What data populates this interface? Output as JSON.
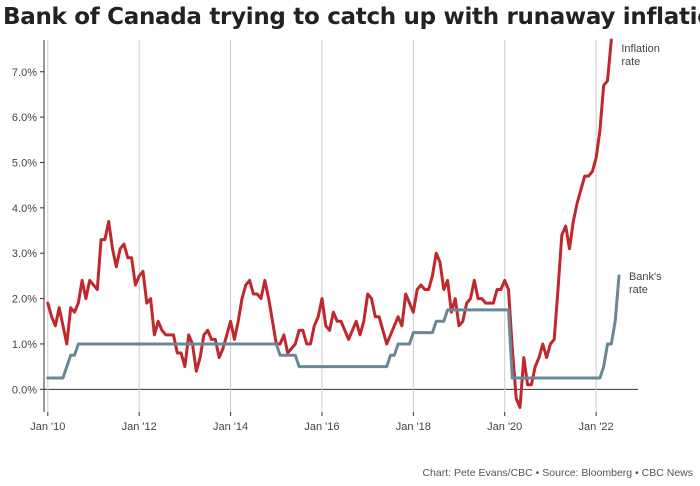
{
  "chart_data": {
    "type": "line",
    "title": "Bank of Canada trying to catch up with runaway inflation",
    "credit": "Chart: Pete Evans/CBC • Source: Bloomberg • CBC News",
    "xlabel": "",
    "ylabel": "",
    "x_range": [
      "2009-12",
      "2022-12"
    ],
    "ylim": [
      -0.5,
      7.7
    ],
    "y_ticks": [
      "0.0%",
      "1.0%",
      "2.0%",
      "3.0%",
      "4.0%",
      "5.0%",
      "6.0%",
      "7.0%"
    ],
    "x_ticks": [
      "Jan '10",
      "Jan '12",
      "Jan '14",
      "Jan '16",
      "Jan '18",
      "Jan '20",
      "Jan '22"
    ],
    "grid": "vertical",
    "series": [
      {
        "name": "Inflation rate",
        "color": "#c0282d",
        "points": [
          [
            "2010-01",
            1.9
          ],
          [
            "2010-02",
            1.6
          ],
          [
            "2010-03",
            1.4
          ],
          [
            "2010-04",
            1.8
          ],
          [
            "2010-05",
            1.4
          ],
          [
            "2010-06",
            1.0
          ],
          [
            "2010-07",
            1.8
          ],
          [
            "2010-08",
            1.7
          ],
          [
            "2010-09",
            1.9
          ],
          [
            "2010-10",
            2.4
          ],
          [
            "2010-11",
            2.0
          ],
          [
            "2010-12",
            2.4
          ],
          [
            "2011-01",
            2.3
          ],
          [
            "2011-02",
            2.2
          ],
          [
            "2011-03",
            3.3
          ],
          [
            "2011-04",
            3.3
          ],
          [
            "2011-05",
            3.7
          ],
          [
            "2011-06",
            3.1
          ],
          [
            "2011-07",
            2.7
          ],
          [
            "2011-08",
            3.1
          ],
          [
            "2011-09",
            3.2
          ],
          [
            "2011-10",
            2.9
          ],
          [
            "2011-11",
            2.9
          ],
          [
            "2011-12",
            2.3
          ],
          [
            "2012-01",
            2.5
          ],
          [
            "2012-02",
            2.6
          ],
          [
            "2012-03",
            1.9
          ],
          [
            "2012-04",
            2.0
          ],
          [
            "2012-05",
            1.2
          ],
          [
            "2012-06",
            1.5
          ],
          [
            "2012-07",
            1.3
          ],
          [
            "2012-08",
            1.2
          ],
          [
            "2012-09",
            1.2
          ],
          [
            "2012-10",
            1.2
          ],
          [
            "2012-11",
            0.8
          ],
          [
            "2012-12",
            0.8
          ],
          [
            "2013-01",
            0.5
          ],
          [
            "2013-02",
            1.2
          ],
          [
            "2013-03",
            1.0
          ],
          [
            "2013-04",
            0.4
          ],
          [
            "2013-05",
            0.7
          ],
          [
            "2013-06",
            1.2
          ],
          [
            "2013-07",
            1.3
          ],
          [
            "2013-08",
            1.1
          ],
          [
            "2013-09",
            1.1
          ],
          [
            "2013-10",
            0.7
          ],
          [
            "2013-11",
            0.9
          ],
          [
            "2013-12",
            1.2
          ],
          [
            "2014-01",
            1.5
          ],
          [
            "2014-02",
            1.1
          ],
          [
            "2014-03",
            1.5
          ],
          [
            "2014-04",
            2.0
          ],
          [
            "2014-05",
            2.3
          ],
          [
            "2014-06",
            2.4
          ],
          [
            "2014-07",
            2.1
          ],
          [
            "2014-08",
            2.1
          ],
          [
            "2014-09",
            2.0
          ],
          [
            "2014-10",
            2.4
          ],
          [
            "2014-11",
            2.0
          ],
          [
            "2014-12",
            1.5
          ],
          [
            "2015-01",
            1.0
          ],
          [
            "2015-02",
            1.0
          ],
          [
            "2015-03",
            1.2
          ],
          [
            "2015-04",
            0.8
          ],
          [
            "2015-05",
            0.9
          ],
          [
            "2015-06",
            1.0
          ],
          [
            "2015-07",
            1.3
          ],
          [
            "2015-08",
            1.3
          ],
          [
            "2015-09",
            1.0
          ],
          [
            "2015-10",
            1.0
          ],
          [
            "2015-11",
            1.4
          ],
          [
            "2015-12",
            1.6
          ],
          [
            "2016-01",
            2.0
          ],
          [
            "2016-02",
            1.4
          ],
          [
            "2016-03",
            1.3
          ],
          [
            "2016-04",
            1.7
          ],
          [
            "2016-05",
            1.5
          ],
          [
            "2016-06",
            1.5
          ],
          [
            "2016-07",
            1.3
          ],
          [
            "2016-08",
            1.1
          ],
          [
            "2016-09",
            1.3
          ],
          [
            "2016-10",
            1.5
          ],
          [
            "2016-11",
            1.2
          ],
          [
            "2016-12",
            1.5
          ],
          [
            "2017-01",
            2.1
          ],
          [
            "2017-02",
            2.0
          ],
          [
            "2017-03",
            1.6
          ],
          [
            "2017-04",
            1.6
          ],
          [
            "2017-05",
            1.3
          ],
          [
            "2017-06",
            1.0
          ],
          [
            "2017-07",
            1.2
          ],
          [
            "2017-08",
            1.4
          ],
          [
            "2017-09",
            1.6
          ],
          [
            "2017-10",
            1.4
          ],
          [
            "2017-11",
            2.1
          ],
          [
            "2017-12",
            1.9
          ],
          [
            "2018-01",
            1.7
          ],
          [
            "2018-02",
            2.2
          ],
          [
            "2018-03",
            2.3
          ],
          [
            "2018-04",
            2.2
          ],
          [
            "2018-05",
            2.2
          ],
          [
            "2018-06",
            2.5
          ],
          [
            "2018-07",
            3.0
          ],
          [
            "2018-08",
            2.8
          ],
          [
            "2018-09",
            2.2
          ],
          [
            "2018-10",
            2.4
          ],
          [
            "2018-11",
            1.7
          ],
          [
            "2018-12",
            2.0
          ],
          [
            "2019-01",
            1.4
          ],
          [
            "2019-02",
            1.5
          ],
          [
            "2019-03",
            1.9
          ],
          [
            "2019-04",
            2.0
          ],
          [
            "2019-05",
            2.4
          ],
          [
            "2019-06",
            2.0
          ],
          [
            "2019-07",
            2.0
          ],
          [
            "2019-08",
            1.9
          ],
          [
            "2019-09",
            1.9
          ],
          [
            "2019-10",
            1.9
          ],
          [
            "2019-11",
            2.2
          ],
          [
            "2019-12",
            2.2
          ],
          [
            "2020-01",
            2.4
          ],
          [
            "2020-02",
            2.2
          ],
          [
            "2020-03",
            0.9
          ],
          [
            "2020-04",
            -0.2
          ],
          [
            "2020-05",
            -0.4
          ],
          [
            "2020-06",
            0.7
          ],
          [
            "2020-07",
            0.1
          ],
          [
            "2020-08",
            0.1
          ],
          [
            "2020-09",
            0.5
          ],
          [
            "2020-10",
            0.7
          ],
          [
            "2020-11",
            1.0
          ],
          [
            "2020-12",
            0.7
          ],
          [
            "2021-01",
            1.0
          ],
          [
            "2021-02",
            1.1
          ],
          [
            "2021-03",
            2.2
          ],
          [
            "2021-04",
            3.4
          ],
          [
            "2021-05",
            3.6
          ],
          [
            "2021-06",
            3.1
          ],
          [
            "2021-07",
            3.7
          ],
          [
            "2021-08",
            4.1
          ],
          [
            "2021-09",
            4.4
          ],
          [
            "2021-10",
            4.7
          ],
          [
            "2021-11",
            4.7
          ],
          [
            "2021-12",
            4.8
          ],
          [
            "2022-01",
            5.1
          ],
          [
            "2022-02",
            5.7
          ],
          [
            "2022-03",
            6.7
          ],
          [
            "2022-04",
            6.8
          ],
          [
            "2022-05",
            7.7
          ]
        ]
      },
      {
        "name": "Bank's rate",
        "color": "#6b8796",
        "points": [
          [
            "2010-01",
            0.25
          ],
          [
            "2010-05",
            0.25
          ],
          [
            "2010-06",
            0.5
          ],
          [
            "2010-07",
            0.75
          ],
          [
            "2010-08",
            0.75
          ],
          [
            "2010-09",
            1.0
          ],
          [
            "2015-01",
            1.0
          ],
          [
            "2015-02",
            0.75
          ],
          [
            "2015-06",
            0.75
          ],
          [
            "2015-07",
            0.5
          ],
          [
            "2017-06",
            0.5
          ],
          [
            "2017-07",
            0.75
          ],
          [
            "2017-08",
            0.75
          ],
          [
            "2017-09",
            1.0
          ],
          [
            "2017-12",
            1.0
          ],
          [
            "2018-01",
            1.25
          ],
          [
            "2018-06",
            1.25
          ],
          [
            "2018-07",
            1.5
          ],
          [
            "2018-09",
            1.5
          ],
          [
            "2018-10",
            1.75
          ],
          [
            "2020-02",
            1.75
          ],
          [
            "2020-03",
            0.25
          ],
          [
            "2022-02",
            0.25
          ],
          [
            "2022-03",
            0.5
          ],
          [
            "2022-04",
            1.0
          ],
          [
            "2022-05",
            1.0
          ],
          [
            "2022-06",
            1.5
          ],
          [
            "2022-07",
            2.5
          ]
        ]
      }
    ]
  }
}
